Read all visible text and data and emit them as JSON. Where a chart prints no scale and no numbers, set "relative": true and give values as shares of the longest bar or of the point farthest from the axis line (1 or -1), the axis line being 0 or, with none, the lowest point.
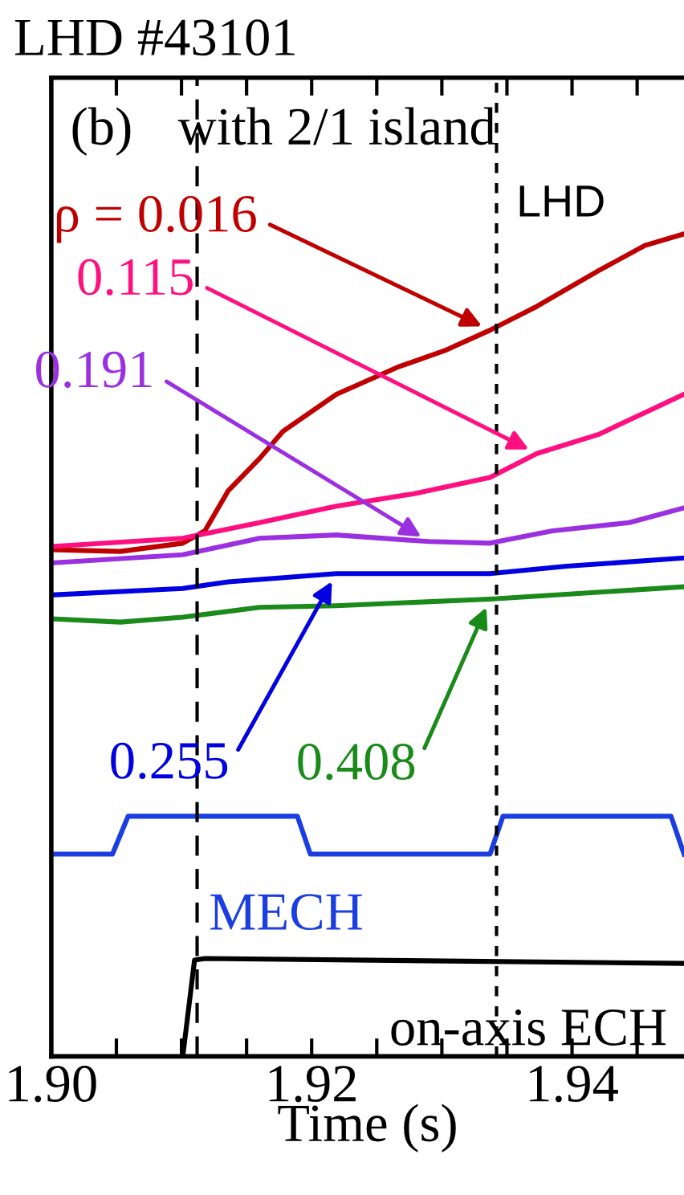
{
  "chart_data": {
    "type": "line",
    "title": "LHD #43101",
    "xlabel": "Time (s)",
    "relative": true,
    "tick_labels": "x",
    "grid": false,
    "legend": false,
    "marker": "none",
    "xlim": [
      1.9,
      1.9486
    ],
    "xticks": [
      {
        "value": 1.9,
        "label": "1.90"
      },
      {
        "value": 1.905,
        "label": null
      },
      {
        "value": 1.91,
        "label": null
      },
      {
        "value": 1.915,
        "label": null
      },
      {
        "value": 1.92,
        "label": "1.92"
      },
      {
        "value": 1.925,
        "label": null
      },
      {
        "value": 1.93,
        "label": null
      },
      {
        "value": 1.935,
        "label": null
      },
      {
        "value": 1.94,
        "label": "1.94"
      },
      {
        "value": 1.945,
        "label": null
      }
    ],
    "annotations": [
      "(b)",
      "with 2/1 island",
      "LHD"
    ],
    "ref_lines": [
      {
        "axis": "x",
        "value": 1.9112,
        "label": null,
        "color": "#000000",
        "line_style": "dashed"
      },
      {
        "axis": "x",
        "value": 1.9342,
        "label": null,
        "color": "#000000",
        "line_style": "dotted"
      }
    ],
    "series": [
      {
        "name": "ρ = 0.016",
        "color": "#c00000",
        "x": [
          1.9,
          1.9053,
          1.9101,
          1.9118,
          1.9136,
          1.916,
          1.9178,
          1.9219,
          1.9266,
          1.9302,
          1.9337,
          1.9373,
          1.942,
          1.9456,
          1.9486
        ],
        "values": [
          0.616,
          0.614,
          0.624,
          0.639,
          0.688,
          0.727,
          0.76,
          0.805,
          0.838,
          0.858,
          0.883,
          0.912,
          0.955,
          0.986,
          1.0
        ]
      },
      {
        "name": "0.115",
        "color": "#ff1080",
        "x": [
          1.9,
          1.9101,
          1.916,
          1.9219,
          1.9278,
          1.9337,
          1.9373,
          1.942,
          1.9486
        ],
        "values": [
          0.62,
          0.63,
          0.649,
          0.669,
          0.684,
          0.704,
          0.733,
          0.756,
          0.805
        ]
      },
      {
        "name": "0.191",
        "color": "#9b30e0",
        "x": [
          1.9,
          1.9101,
          1.916,
          1.9219,
          1.929,
          1.9337,
          1.9385,
          1.9444,
          1.9486
        ],
        "values": [
          0.6,
          0.61,
          0.63,
          0.634,
          0.626,
          0.624,
          0.639,
          0.649,
          0.667
        ]
      },
      {
        "name": "0.255",
        "color": "#0000e0",
        "x": [
          1.9,
          1.9101,
          1.9136,
          1.9219,
          1.9337,
          1.9396,
          1.9486
        ],
        "values": [
          0.561,
          0.569,
          0.577,
          0.587,
          0.587,
          0.596,
          0.606
        ]
      },
      {
        "name": "0.408",
        "color": "#1a8a1a",
        "x": [
          1.9,
          1.9053,
          1.9101,
          1.916,
          1.9219,
          1.9337,
          1.9486
        ],
        "values": [
          0.532,
          0.528,
          0.534,
          0.546,
          0.548,
          0.556,
          0.571
        ]
      },
      {
        "name": "MECH",
        "color": "#1a3ee0",
        "x": [
          1.9,
          1.9047,
          1.9059,
          1.9189,
          1.9199,
          1.9337,
          1.9347,
          1.9476,
          1.9486
        ],
        "values": [
          0.246,
          0.246,
          0.292,
          0.292,
          0.246,
          0.246,
          0.292,
          0.292,
          0.246
        ]
      },
      {
        "name": "on-axis ECH",
        "color": "#000000",
        "x": [
          1.9101,
          1.911,
          1.9118,
          1.9486
        ],
        "values": [
          0.0,
          0.117,
          0.119,
          0.113
        ]
      }
    ]
  }
}
